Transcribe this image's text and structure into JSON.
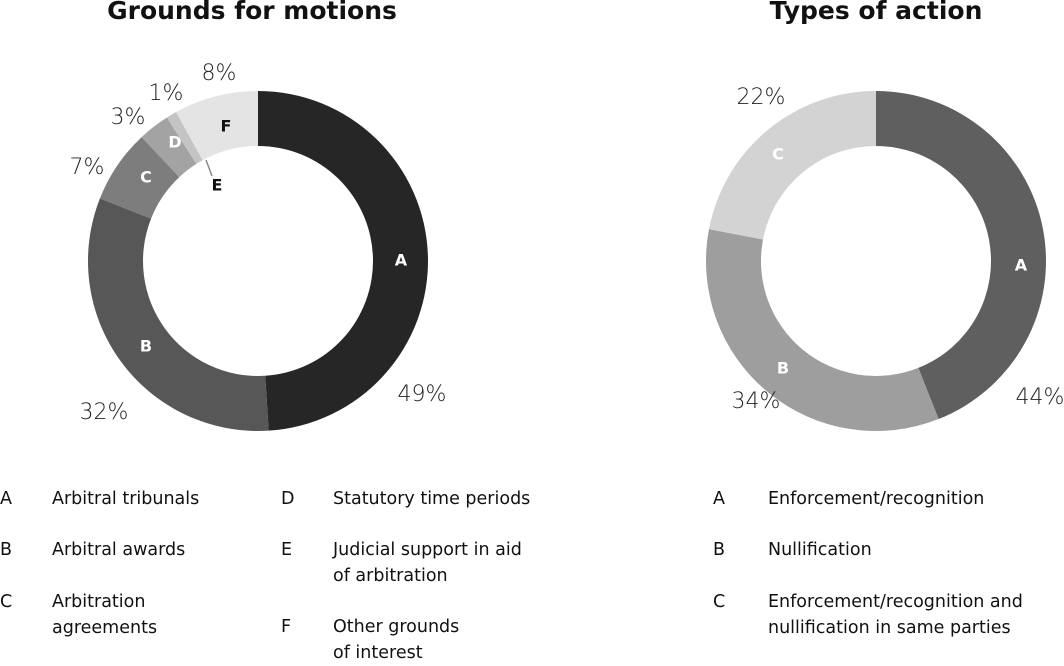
{
  "chart_data": [
    {
      "type": "donut",
      "title": "Grounds for motions",
      "slices": [
        {
          "letter": "A",
          "label": "Arbitral tribunals",
          "value": 49,
          "value_label": "49%",
          "color": "#262626",
          "letter_color": "#ffffff"
        },
        {
          "letter": "B",
          "label": "Arbitral awards",
          "value": 32,
          "value_label": "32%",
          "color": "#575757",
          "letter_color": "#ffffff"
        },
        {
          "letter": "C",
          "label": "Arbitration\nagreements",
          "value": 7,
          "value_label": "7%",
          "color": "#7d7d7d",
          "letter_color": "#ffffff"
        },
        {
          "letter": "D",
          "label": "Statutory time periods",
          "value": 3,
          "value_label": "3%",
          "color": "#a3a3a3",
          "letter_color": "#ffffff"
        },
        {
          "letter": "E",
          "label": "Judicial support in aid\nof arbitration",
          "value": 1,
          "value_label": "1%",
          "color": "#c4c4c4",
          "letter_color": "#111111"
        },
        {
          "letter": "F",
          "label": "Other grounds\nof interest",
          "value": 8,
          "value_label": "8%",
          "color": "#e4e4e4",
          "letter_color": "#111111"
        }
      ]
    },
    {
      "type": "donut",
      "title": "Types of action",
      "slices": [
        {
          "letter": "A",
          "label": "Enforcement/recognition",
          "value": 44,
          "value_label": "44%",
          "color": "#5f5f5f",
          "letter_color": "#ffffff"
        },
        {
          "letter": "B",
          "label": "Nullification",
          "value": 34,
          "value_label": "34%",
          "color": "#9e9e9e",
          "letter_color": "#ffffff"
        },
        {
          "letter": "C",
          "label": "Enforcement/recognition and\nnullification in same parties",
          "value": 22,
          "value_label": "22%",
          "color": "#d3d3d3",
          "letter_color": "#ffffff"
        }
      ]
    }
  ]
}
